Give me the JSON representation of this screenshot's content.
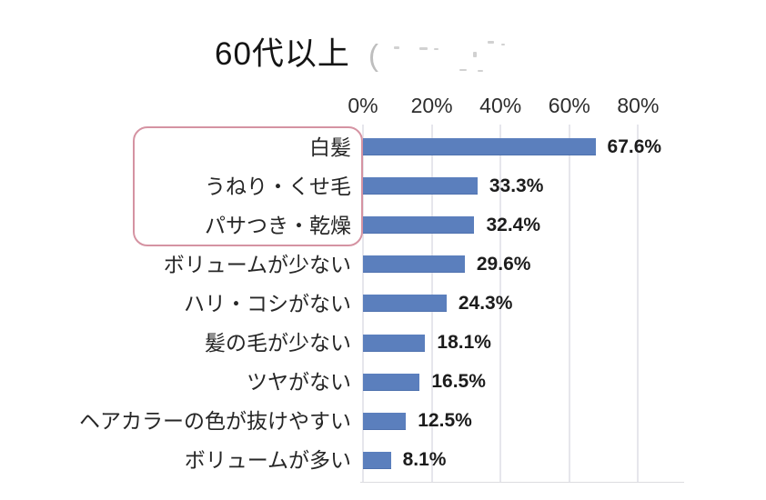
{
  "header": {
    "title_visible": "60代以上",
    "erased_remnant": "("
  },
  "chart_data": {
    "type": "bar",
    "orientation": "horizontal",
    "title": "60代以上",
    "title_note_visible_only": "60代以上",
    "categories": [
      "白髪",
      "うねり・くせ毛",
      "パサつき・乾燥",
      "ボリュームが少ない",
      "ハリ・コシがない",
      "髪の毛が少ない",
      "ツヤがない",
      "ヘアカラーの色が抜けやすい",
      "ボリュームが多い"
    ],
    "values": [
      67.6,
      33.3,
      32.4,
      29.6,
      24.3,
      18.1,
      16.5,
      12.5,
      8.1
    ],
    "value_labels": [
      "67.6%",
      "33.3%",
      "32.4%",
      "29.6%",
      "24.3%",
      "18.1%",
      "16.5%",
      "12.5%",
      "8.1%"
    ],
    "x_ticks": [
      "0%",
      "20%",
      "40%",
      "60%",
      "80%"
    ],
    "x_tick_values": [
      0,
      20,
      40,
      60,
      80
    ],
    "xlim": [
      0,
      93
    ],
    "grid": true,
    "legend": "none",
    "bar_color": "#5b7fbd",
    "gridline_color": "#e6e6ec",
    "highlight_box": {
      "border_color": "#d593a2",
      "highlighted_categories": [
        "白髪",
        "うねり・くせ毛",
        "パサつき・乾燥"
      ]
    }
  }
}
